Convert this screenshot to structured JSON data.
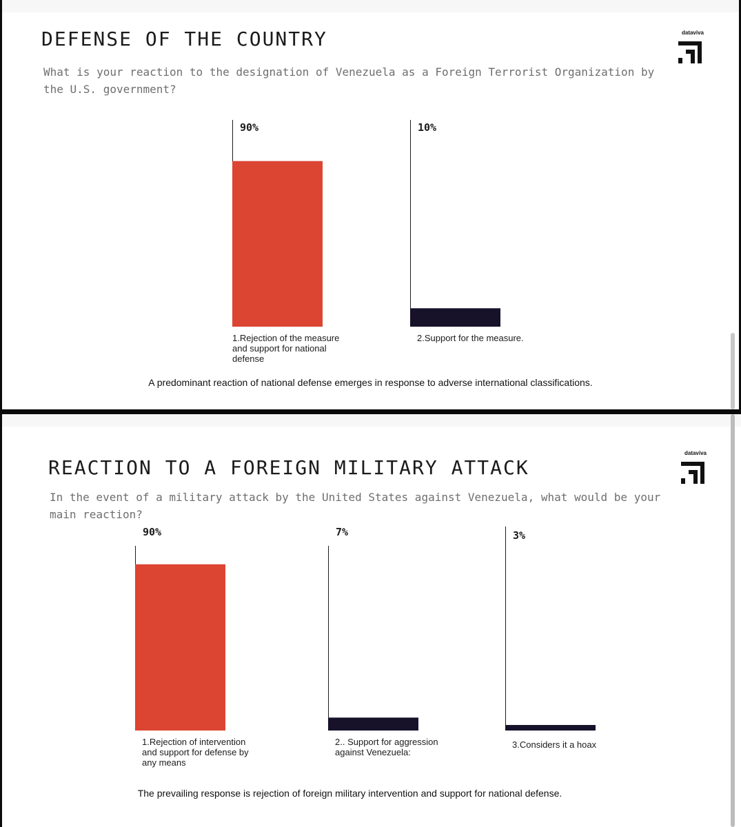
{
  "brand": {
    "name": "dataviva"
  },
  "colors": {
    "primary": "#db4532",
    "secondary": "#17122a",
    "rule": "#1b1b1b"
  },
  "chart_data": [
    {
      "type": "bar",
      "title": "DEFENSE OF THE COUNTRY",
      "subtitle": "What is your reaction to the designation of Venezuela as a Foreign Terrorist Organization by the U.S. government?",
      "categories": [
        "1.Rejection of the measure and support for national defense",
        "2.Support for the measure."
      ],
      "values": [
        90,
        10
      ],
      "value_labels": [
        "90%",
        "10%"
      ],
      "unit": "%",
      "bar_colors": [
        "#db4532",
        "#17122a"
      ],
      "ylim": [
        0,
        100
      ],
      "grid": false,
      "legend": "none",
      "caption": "A predominant reaction of national defense emerges in response to adverse international classifications."
    },
    {
      "type": "bar",
      "title": "REACTION TO A FOREIGN MILITARY ATTACK",
      "subtitle": "In the event of a military attack by the United States against Venezuela, what would be your main reaction?",
      "categories": [
        "1.Rejection of intervention and support for defense by any means",
        "2.. Support for aggression against Venezuela:",
        "3.Considers it a hoax"
      ],
      "values": [
        90,
        7,
        3
      ],
      "value_labels": [
        "90%",
        "7%",
        "3%"
      ],
      "unit": "%",
      "bar_colors": [
        "#db4532",
        "#17122a",
        "#17122a"
      ],
      "ylim": [
        0,
        100
      ],
      "grid": false,
      "legend": "none",
      "caption": "The prevailing response is rejection of foreign military intervention and support for national defense."
    }
  ]
}
